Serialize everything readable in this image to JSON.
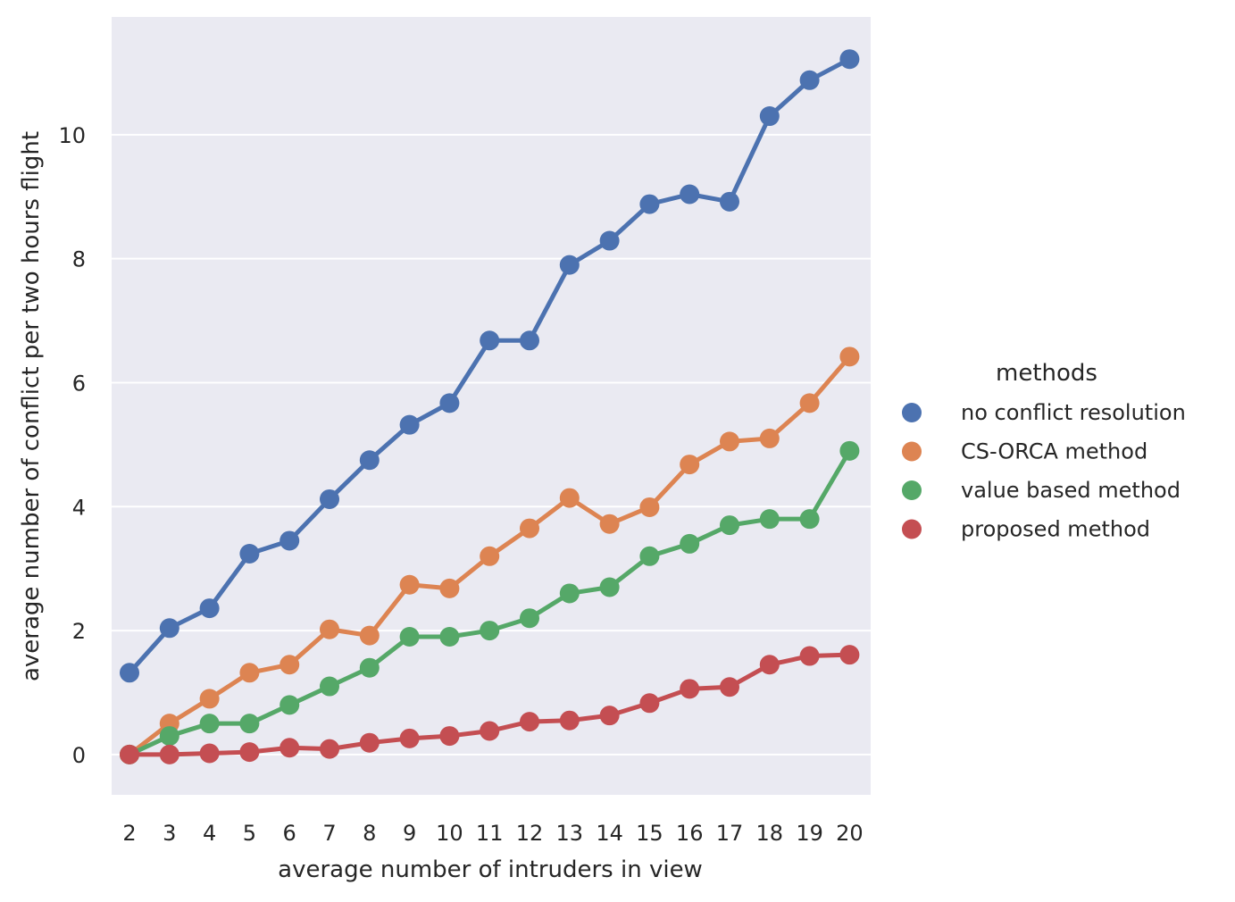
{
  "chart_data": {
    "type": "line",
    "title": "",
    "xlabel": "average number of intruders in view",
    "ylabel": "average number of conflict per two hours flight",
    "categories": [
      "2",
      "3",
      "4",
      "5",
      "6",
      "7",
      "8",
      "9",
      "10",
      "11",
      "12",
      "13",
      "14",
      "15",
      "16",
      "17",
      "18",
      "19",
      "20"
    ],
    "ylim": [
      -0.65,
      11.9
    ],
    "yticks": [
      0,
      2,
      4,
      6,
      8,
      10
    ],
    "grid": true,
    "legend": {
      "title": "methods",
      "placement": "right"
    },
    "series": [
      {
        "name": "no conflict resolution",
        "color": "#4c72b0",
        "values": [
          1.32,
          2.04,
          2.36,
          3.24,
          3.45,
          4.12,
          4.75,
          5.32,
          5.67,
          6.68,
          6.68,
          7.9,
          8.29,
          8.88,
          9.04,
          8.92,
          10.3,
          10.88,
          11.22
        ]
      },
      {
        "name": "CS-ORCA method",
        "color": "#dd8452",
        "values": [
          0.0,
          0.5,
          0.9,
          1.32,
          1.45,
          2.02,
          1.92,
          2.74,
          2.68,
          3.2,
          3.65,
          4.14,
          3.72,
          3.99,
          4.68,
          5.05,
          5.1,
          5.67,
          6.42
        ]
      },
      {
        "name": "value based method",
        "color": "#55a868",
        "values": [
          0.0,
          0.3,
          0.5,
          0.5,
          0.8,
          1.1,
          1.4,
          1.9,
          1.9,
          2.0,
          2.2,
          2.6,
          2.7,
          3.2,
          3.4,
          3.7,
          3.8,
          3.8,
          4.9
        ]
      },
      {
        "name": "proposed method",
        "color": "#c44e52",
        "values": [
          0.0,
          0.0,
          0.02,
          0.04,
          0.11,
          0.09,
          0.19,
          0.26,
          0.3,
          0.38,
          0.53,
          0.55,
          0.63,
          0.83,
          1.06,
          1.09,
          1.45,
          1.59,
          1.61
        ]
      }
    ]
  }
}
